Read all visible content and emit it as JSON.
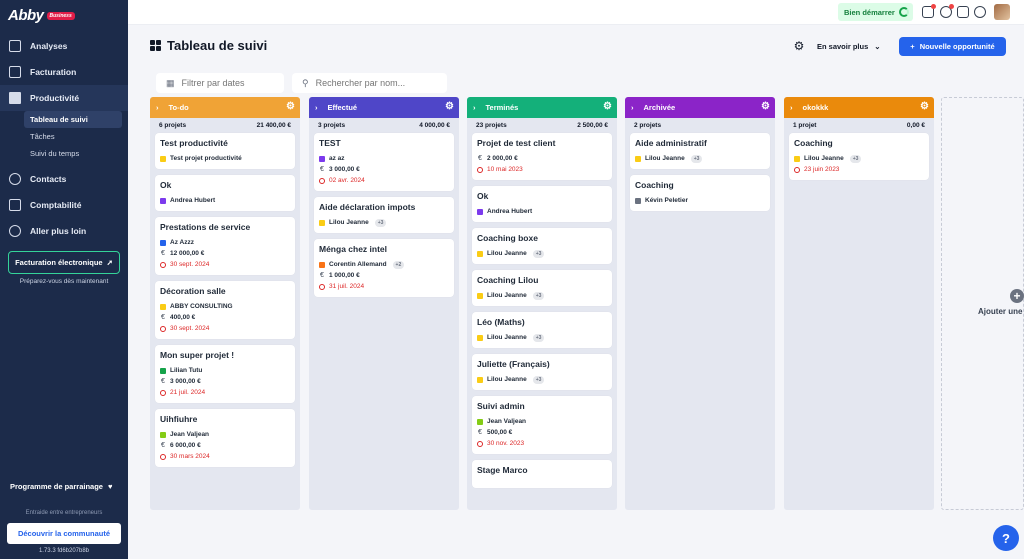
{
  "logo": {
    "text": "Abby",
    "badge": "Business"
  },
  "nav": {
    "analyses": "Analyses",
    "facturation": "Facturation",
    "productivite": "Productivité",
    "sub": [
      "Tableau de suivi",
      "Tâches",
      "Suivi du temps"
    ],
    "contacts": "Contacts",
    "comptabilite": "Comptabilité",
    "plus_loin": "Aller plus loin"
  },
  "einvoice": {
    "label": "Facturation électronique",
    "sub": "Préparez-vous dès maintenant"
  },
  "referral": "Programme de parrainage",
  "community": {
    "hint": "Entraide entre entrepreneurs",
    "button": "Découvrir la communauté"
  },
  "version": "1.73.3 fd6b207b8b",
  "topbar": {
    "start": "Bien démarrer"
  },
  "page": {
    "title": "Tableau de suivi",
    "learn_more": "En savoir plus",
    "new_opportunity": "Nouvelle opportunité"
  },
  "filters": {
    "date_placeholder": "Filtrer par dates",
    "search_placeholder": "Rechercher par nom..."
  },
  "columns": [
    {
      "name": "To-do",
      "color": "#f0a336",
      "count": "6 projets",
      "total": "21 400,00 €",
      "cards": [
        {
          "title": "Test productivité",
          "client": "Test projet productivité",
          "client_color": "#facc15"
        },
        {
          "title": "Ok",
          "client": "Andrea Hubert",
          "client_color": "#7c3aed"
        },
        {
          "title": "Prestations de service",
          "client": "Az Azzz",
          "client_color": "#2563eb",
          "amount": "12 000,00 €",
          "date": "30 sept. 2024"
        },
        {
          "title": "Décoration salle",
          "client": "ABBY CONSULTING",
          "client_color": "#facc15",
          "amount": "400,00 €",
          "date": "30 sept. 2024"
        },
        {
          "title": "Mon super projet !",
          "client": "Lilian Tutu",
          "client_color": "#16a34a",
          "amount": "3 000,00 €",
          "date": "21 juil. 2024"
        },
        {
          "title": "Uihfiuhre",
          "client": "Jean Valjean",
          "client_color": "#84cc16",
          "amount": "6 000,00 €",
          "date": "30 mars 2024"
        }
      ]
    },
    {
      "name": "Effectué",
      "color": "#4f46c8",
      "count": "3 projets",
      "total": "4 000,00 €",
      "cards": [
        {
          "title": "TEST",
          "client": "az az",
          "client_color": "#7c3aed",
          "amount": "3 000,00 €",
          "date": "02 avr. 2024"
        },
        {
          "title": "Aide déclaration impots",
          "client": "Lilou Jeanne",
          "client_color": "#facc15",
          "chip": "+3"
        },
        {
          "title": "Ménga chez intel",
          "client": "Corentin Allemand",
          "client_color": "#f97316",
          "chip": "+2",
          "amount": "1 000,00 €",
          "date": "31 juil. 2024"
        }
      ]
    },
    {
      "name": "Terminés",
      "color": "#14b07a",
      "count": "23 projets",
      "total": "2 500,00 €",
      "cards": [
        {
          "title": "Projet de test client",
          "amount": "2 000,00 €",
          "date": "10 mai 2023"
        },
        {
          "title": "Ok",
          "client": "Andrea Hubert",
          "client_color": "#7c3aed"
        },
        {
          "title": "Coaching boxe",
          "client": "Lilou Jeanne",
          "client_color": "#facc15",
          "chip": "+3"
        },
        {
          "title": "Coaching Lilou",
          "client": "Lilou Jeanne",
          "client_color": "#facc15",
          "chip": "+3"
        },
        {
          "title": "Léo (Maths)",
          "client": "Lilou Jeanne",
          "client_color": "#facc15",
          "chip": "+3"
        },
        {
          "title": "Juliette (Français)",
          "client": "Lilou Jeanne",
          "client_color": "#facc15",
          "chip": "+3"
        },
        {
          "title": "Suivi admin",
          "client": "Jean Valjean",
          "client_color": "#84cc16",
          "amount": "500,00 €",
          "date": "30 nov. 2023"
        },
        {
          "title": "Stage Marco"
        }
      ]
    },
    {
      "name": "Archivée",
      "color": "#8b24c8",
      "count": "2 projets",
      "total": "",
      "cards": [
        {
          "title": "Aide administratif",
          "client": "Lilou Jeanne",
          "client_color": "#facc15",
          "chip": "+3"
        },
        {
          "title": "Coaching",
          "client": "Kévin Peletier",
          "client_color": "#6b7280"
        }
      ]
    },
    {
      "name": "okokkk",
      "color": "#ea8a0c",
      "count": "1 projet",
      "total": "0,00 €",
      "cards": [
        {
          "title": "Coaching",
          "client": "Lilou Jeanne",
          "client_color": "#facc15",
          "chip": "+3",
          "date": "23 juin 2023"
        }
      ]
    }
  ],
  "add_column": "Ajouter une",
  "help": "?"
}
